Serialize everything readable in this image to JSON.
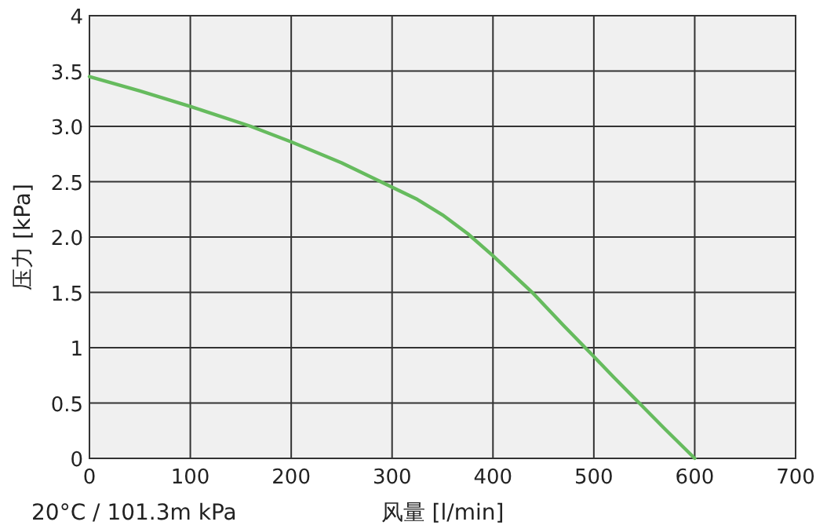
{
  "chart_data": {
    "type": "line",
    "xlabel": "风量 [l/min]",
    "ylabel": "压力 [kPa]",
    "annotations": [
      "20°C / 101.3m kPa"
    ],
    "x": [
      0,
      50,
      100,
      160,
      200,
      250,
      300,
      325,
      350,
      375,
      400,
      420,
      440,
      470,
      500,
      520,
      545,
      570,
      600
    ],
    "series": [
      {
        "color": "#66bb5e",
        "values": [
          3.45,
          3.32,
          3.18,
          3.0,
          2.86,
          2.67,
          2.45,
          2.34,
          2.2,
          2.03,
          1.83,
          1.66,
          1.49,
          1.2,
          0.92,
          0.73,
          0.5,
          0.27,
          0
        ]
      }
    ],
    "xlim": [
      0,
      700
    ],
    "xticks": [
      0,
      100,
      200,
      300,
      400,
      500,
      600,
      700
    ],
    "ylim": [
      0,
      4
    ],
    "yticks": [
      0,
      0.5,
      1,
      1.5,
      {
        "value": 2,
        "label": "2.0"
      },
      2.5,
      {
        "value": 3,
        "label": "3.0"
      },
      3.5,
      4
    ],
    "grid": true,
    "marker": "none",
    "line_style": "solid"
  }
}
